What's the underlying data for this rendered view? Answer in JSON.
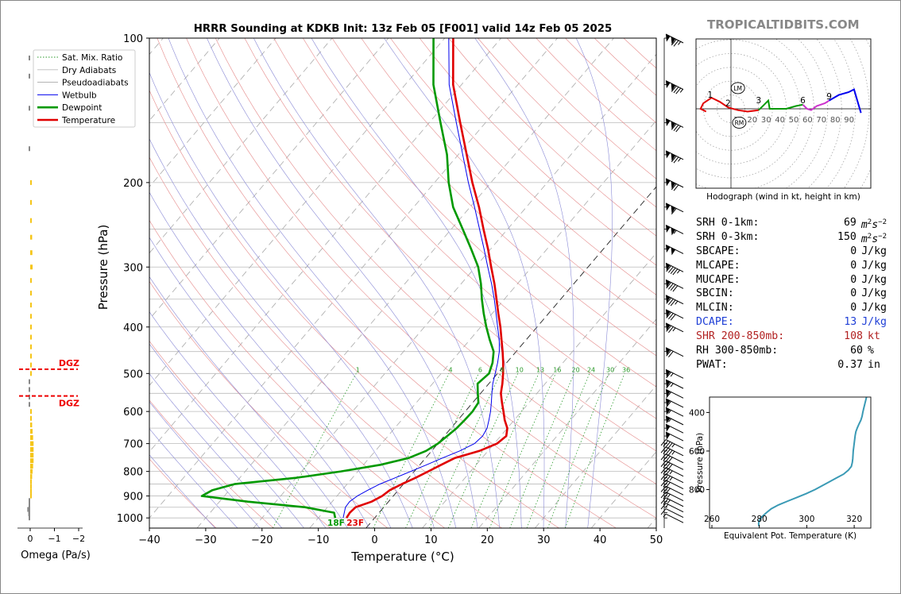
{
  "title": "HRRR Sounding at KDKB Init: 13z Feb 05 [F001] valid 14z Feb 05 2025",
  "brand": "TROPICALTIDBITS.COM",
  "colors": {
    "temperature": "#e00000",
    "dewpoint": "#009900",
    "wetbulb": "#0000ee",
    "dgz": "#ee0000",
    "omega": "#f5c518",
    "thetae": "#3a9ab5",
    "dcape": "#1f3fd6",
    "shear": "#b22222"
  },
  "chart_data": [
    {
      "type": "line",
      "name": "skewt",
      "title": "HRRR Sounding at KDKB Init: 13z Feb 05 [F001] valid 14z Feb 05 2025",
      "xlabel": "Temperature (°C)",
      "ylabel": "Pressure (hPa)",
      "xlim": [
        -40,
        50
      ],
      "ylim": [
        1050,
        100
      ],
      "log_y": true,
      "xticks": [
        -40,
        -30,
        -20,
        -10,
        0,
        10,
        20,
        30,
        40,
        50
      ],
      "xtick_labels": [
        "−40",
        "−30",
        "−20",
        "−10",
        "0",
        "10",
        "20",
        "30",
        "40",
        "50"
      ],
      "yticks": [
        1000,
        900,
        800,
        700,
        600,
        500,
        400,
        300,
        200,
        100
      ],
      "legend": [
        "Sat. Mix. Ratio",
        "Dry Adiabats",
        "Pseudoadiabats",
        "Wetbulb",
        "Dewpoint",
        "Temperature"
      ],
      "legend_position": "top-left",
      "mixing_ratio_labels": [
        "1",
        "4",
        "6",
        "8",
        "10",
        "13",
        "16",
        "20",
        "24",
        "30",
        "36"
      ],
      "surface_labels": {
        "dewpoint": "18F",
        "temperature": "23F"
      },
      "series": [
        {
          "name": "Temperature",
          "p": [
            1000,
            975,
            950,
            925,
            900,
            875,
            850,
            825,
            800,
            775,
            750,
            725,
            700,
            675,
            650,
            625,
            600,
            575,
            550,
            525,
            500,
            475,
            450,
            425,
            400,
            375,
            350,
            325,
            300,
            275,
            250,
            225,
            200,
            175,
            150,
            125,
            100
          ],
          "t": [
            -5.0,
            -5.2,
            -5.0,
            -3.0,
            -2.0,
            -1.5,
            -0.3,
            1.2,
            2.5,
            3.8,
            5.2,
            8.5,
            10.5,
            11.0,
            10.0,
            8.3,
            6.8,
            5.2,
            3.6,
            2.4,
            1.0,
            -0.6,
            -2.4,
            -4.4,
            -6.5,
            -8.9,
            -11.4,
            -14.1,
            -17.2,
            -20.5,
            -24.3,
            -28.4,
            -33.3,
            -38.5,
            -44.5,
            -51.5,
            -58.5
          ]
        },
        {
          "name": "Dewpoint",
          "p": [
            1000,
            975,
            950,
            925,
            900,
            875,
            850,
            825,
            800,
            775,
            750,
            725,
            700,
            675,
            650,
            625,
            600,
            575,
            550,
            525,
            500,
            475,
            450,
            425,
            400,
            375,
            350,
            325,
            300,
            275,
            250,
            225,
            200,
            175,
            150,
            125,
            100
          ],
          "t": [
            -7.0,
            -8.0,
            -14.0,
            -25.0,
            -34.0,
            -33.0,
            -30.0,
            -20.0,
            -13.0,
            -7.0,
            -3.0,
            -1.0,
            0.0,
            0.5,
            1.0,
            1.2,
            1.3,
            1.0,
            -0.5,
            -2.0,
            -1.5,
            -2.5,
            -4.0,
            -6.5,
            -9.0,
            -11.5,
            -14.0,
            -16.5,
            -19.5,
            -23.5,
            -28.0,
            -33.0,
            -37.5,
            -42.0,
            -48.0,
            -55.0,
            -62.0
          ]
        },
        {
          "name": "Wetbulb",
          "p": [
            1000,
            975,
            950,
            925,
            900,
            875,
            850,
            825,
            800,
            775,
            750,
            725,
            700,
            675,
            650,
            625,
            600,
            575,
            550,
            525,
            500,
            475,
            450,
            425,
            400,
            375,
            350,
            325,
            300,
            275,
            250,
            225,
            200,
            175,
            150,
            125,
            100
          ],
          "t": [
            -5.6,
            -6.2,
            -6.8,
            -6.9,
            -6.4,
            -5.4,
            -4.2,
            -2.4,
            -0.6,
            1.2,
            3.0,
            5.0,
            6.5,
            6.8,
            6.4,
            5.5,
            4.5,
            3.3,
            2.0,
            0.7,
            -0.4,
            -1.6,
            -3.0,
            -4.8,
            -7.0,
            -9.3,
            -11.8,
            -14.6,
            -17.8,
            -21.2,
            -25.0,
            -29.2,
            -34.0,
            -39.2,
            -45.2,
            -52.2,
            -59.3
          ]
        }
      ],
      "wind_barbs_p": [
        1000,
        975,
        950,
        925,
        900,
        875,
        850,
        825,
        800,
        775,
        750,
        725,
        700,
        675,
        650,
        625,
        600,
        575,
        550,
        525,
        500,
        450,
        400,
        375,
        350,
        325,
        300,
        275,
        250,
        225,
        200,
        175,
        150,
        125,
        100
      ],
      "wind_barbs_kt": [
        5,
        10,
        15,
        25,
        25,
        30,
        30,
        35,
        35,
        40,
        40,
        45,
        45,
        50,
        50,
        55,
        55,
        60,
        60,
        65,
        65,
        70,
        75,
        80,
        85,
        90,
        95,
        100,
        105,
        110,
        120,
        125,
        130,
        135,
        125
      ]
    },
    {
      "type": "bar",
      "name": "omega",
      "xlabel": "Omega (Pa/s)",
      "xticks": [
        0,
        -1,
        -2
      ],
      "xtick_labels": [
        "0",
        "−1",
        "−2"
      ],
      "p": [
        1000,
        980,
        960,
        940,
        920,
        900,
        880,
        860,
        840,
        820,
        800,
        780,
        760,
        740,
        720,
        700,
        680,
        660,
        640,
        620,
        600,
        580,
        560,
        540,
        520,
        500,
        480,
        460,
        440,
        420,
        400,
        380,
        360,
        340,
        320,
        300,
        280,
        260,
        240,
        220,
        200,
        170,
        140,
        120,
        110
      ],
      "omega": [
        0.05,
        0.08,
        0.12,
        0.05,
        0.02,
        -0.02,
        -0.05,
        -0.05,
        -0.06,
        -0.08,
        -0.1,
        -0.12,
        -0.14,
        -0.14,
        -0.14,
        -0.14,
        -0.12,
        -0.1,
        -0.08,
        -0.05,
        -0.02,
        0.02,
        0.05,
        0.05,
        0.03,
        -0.02,
        -0.02,
        -0.03,
        -0.02,
        -0.02,
        -0.02,
        -0.03,
        -0.04,
        -0.05,
        -0.06,
        -0.1,
        -0.09,
        -0.08,
        -0.06,
        -0.05,
        -0.03,
        0.03,
        0.05,
        0.04,
        0.04
      ],
      "dgz": [
        {
          "p": 490,
          "label": "DGZ"
        },
        {
          "p": 557,
          "label": "DGZ"
        }
      ]
    },
    {
      "type": "line",
      "name": "hodograph",
      "xlabel": "Hodograph (wind in kt, height in km)",
      "ring_labels": [
        "10",
        "20",
        "30",
        "40",
        "50",
        "60",
        "70",
        "80",
        "90"
      ],
      "height_labels": [
        {
          "label": "1",
          "u": -15,
          "v": 8
        },
        {
          "label": "2",
          "u": -2,
          "v": 2
        },
        {
          "label": "3",
          "u": 20,
          "v": 4
        },
        {
          "label": "6",
          "u": 52,
          "v": 4
        },
        {
          "label": "9",
          "u": 71,
          "v": 7
        }
      ],
      "motion_labels": [
        {
          "label": "LM",
          "u": 5,
          "v": 15
        },
        {
          "label": "RM",
          "u": 6,
          "v": -10
        }
      ],
      "segments": [
        {
          "color": "#e00000",
          "u": [
            -18,
            -22,
            -20,
            -14,
            -8,
            -2,
            5,
            12,
            20
          ],
          "v": [
            -2,
            0,
            4,
            8,
            5,
            1,
            -1,
            -2,
            -1
          ]
        },
        {
          "color": "#009900",
          "u": [
            20,
            24,
            27,
            28,
            35,
            40,
            47,
            52
          ],
          "v": [
            -1,
            3,
            6,
            0,
            0,
            0,
            2,
            3
          ]
        },
        {
          "color": "#cc33cc",
          "u": [
            52,
            55,
            58,
            62,
            68,
            71
          ],
          "v": [
            3,
            0,
            -1,
            2,
            4,
            6
          ]
        },
        {
          "color": "#0000ee",
          "u": [
            71,
            78,
            85,
            89,
            94
          ],
          "v": [
            6,
            10,
            12,
            14,
            -3
          ]
        }
      ]
    },
    {
      "type": "line",
      "name": "theta_e",
      "xlabel": "Equivalent Pot. Temperature (K)",
      "ylabel": "Pressure (hPa)",
      "xlim": [
        259,
        327
      ],
      "ylim": [
        1000,
        320
      ],
      "xticks": [
        260,
        280,
        300,
        320
      ],
      "yticks": [
        400,
        600,
        800
      ],
      "p": [
        990,
        975,
        960,
        940,
        920,
        900,
        880,
        860,
        840,
        820,
        800,
        780,
        760,
        740,
        720,
        700,
        680,
        660,
        640,
        620,
        600,
        580,
        560,
        540,
        520,
        500,
        480,
        460,
        440,
        420,
        400,
        380,
        360,
        340,
        320
      ],
      "theta_e": [
        279.8,
        279.7,
        280.0,
        281.2,
        283.0,
        285.0,
        288.0,
        292.0,
        296.0,
        300.0,
        303.5,
        306.5,
        309.5,
        312.5,
        315.5,
        317.5,
        318.8,
        319.2,
        319.4,
        319.5,
        319.6,
        319.8,
        320.0,
        320.2,
        320.4,
        320.7,
        321.3,
        322.0,
        322.8,
        323.3,
        323.6,
        324.0,
        324.4,
        324.8,
        325.2
      ]
    }
  ],
  "stats": [
    {
      "label": "SRH 0-1km:",
      "value": "69",
      "unit_base": "m",
      "unit_sup1": "2",
      "unit_mid": "s",
      "unit_sup2": "−2",
      "color": "#000000"
    },
    {
      "label": "SRH 0-3km:",
      "value": "150",
      "unit_base": "m",
      "unit_sup1": "2",
      "unit_mid": "s",
      "unit_sup2": "−2",
      "color": "#000000"
    },
    {
      "label": "SBCAPE:",
      "value": "0",
      "unit": "J/kg",
      "color": "#000000"
    },
    {
      "label": "MLCAPE:",
      "value": "0",
      "unit": "J/kg",
      "color": "#000000"
    },
    {
      "label": "MUCAPE:",
      "value": "0",
      "unit": "J/kg",
      "color": "#000000"
    },
    {
      "label": "SBCIN:",
      "value": "0",
      "unit": "J/kg",
      "color": "#000000"
    },
    {
      "label": "MLCIN:",
      "value": "0",
      "unit": "J/kg",
      "color": "#000000"
    },
    {
      "label": "DCAPE:",
      "value": "13",
      "unit": "J/kg",
      "color": "#1f3fd6"
    },
    {
      "label": "SHR 200-850mb:",
      "value": "108",
      "unit": "kt",
      "color": "#b22222"
    },
    {
      "label": "RH 300-850mb:",
      "value": "60",
      "unit": "%",
      "color": "#000000"
    },
    {
      "label": "PWAT:",
      "value": "0.37",
      "unit": "in",
      "color": "#000000"
    }
  ]
}
